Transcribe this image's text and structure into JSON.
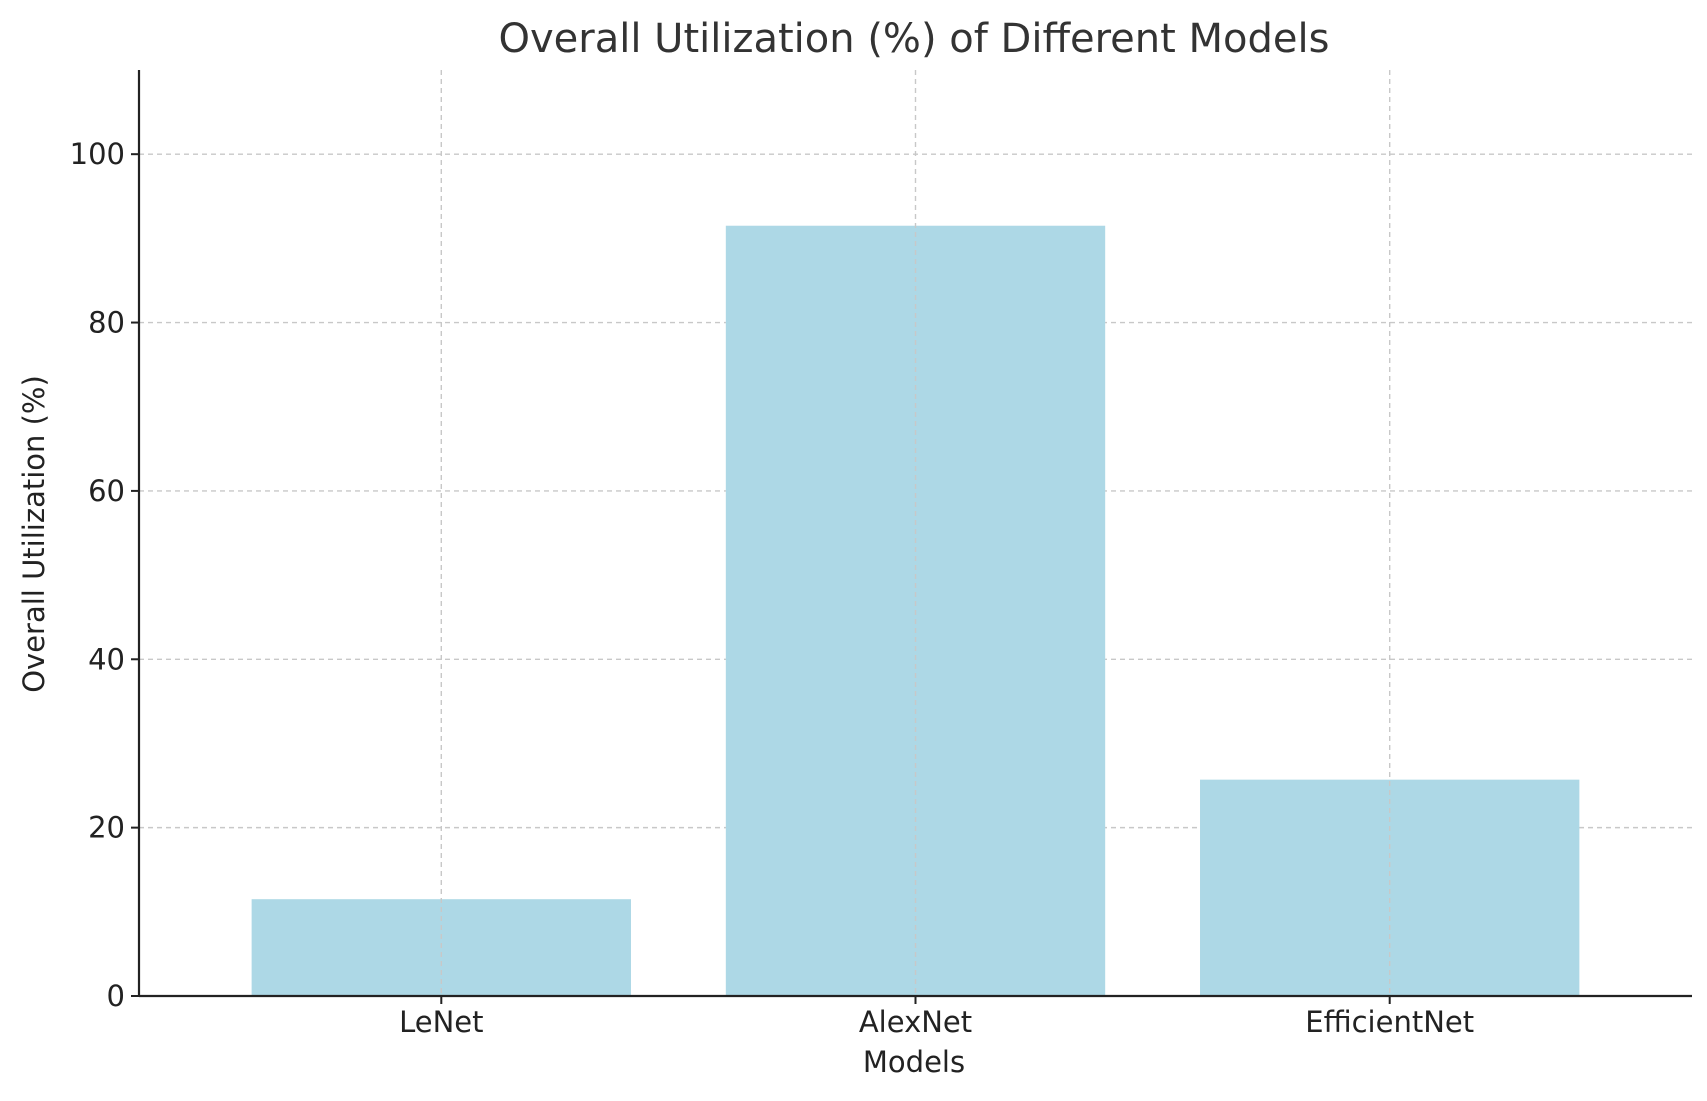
{
  "chart_data": {
    "type": "bar",
    "title": "Overall Utilization (%) of Different Models",
    "xlabel": "Models",
    "ylabel": "Overall Utilization (%)",
    "categories": [
      "LeNet",
      "AlexNet",
      "EfficientNet"
    ],
    "values": [
      11.5,
      91.5,
      25.7
    ],
    "ylim": [
      0,
      110
    ],
    "yticks": [
      0,
      20,
      40,
      60,
      80,
      100
    ],
    "grid": true,
    "bar_color": "#add8e6"
  }
}
